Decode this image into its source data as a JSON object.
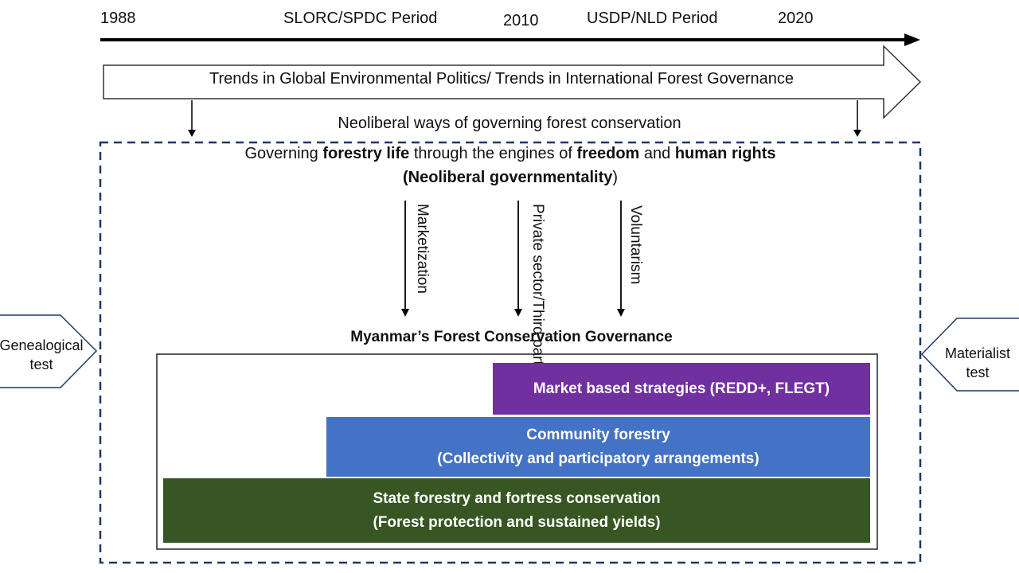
{
  "timeline": {
    "start_year": "1988",
    "period1": "SLORC/SPDC Period",
    "mid_year": "2010",
    "period2": "USDP/NLD Period",
    "end_year": "2020"
  },
  "trend_arrow": {
    "text": "Trends in Global Environmental Politics/ Trends in International Forest Governance"
  },
  "subtitle": "Neoliberal ways of governing forest conservation",
  "governing": {
    "line1_a": "Governing ",
    "line1_b": "forestry life",
    "line1_c": " through the engines of ",
    "line1_d": "freedom",
    "line1_e": " and ",
    "line1_f": "human rights",
    "line2_open": "(",
    "line2_bold": "Neoliberal governmentality",
    "line2_close": ")"
  },
  "mechanisms": {
    "marketization": "Marketization",
    "private_line1": "Private sector/",
    "private_line2": "Third parties",
    "voluntarism": "Voluntarism"
  },
  "governance_title": "Myanmar’s Forest Conservation Governance",
  "bands": {
    "market": {
      "line1": "Market based strategies (REDD+, FLEGT)",
      "color": "#7030a0"
    },
    "community": {
      "line1": "Community forestry",
      "line2": "(Collectivity and participatory arrangements)",
      "color": "#4472c4"
    },
    "state": {
      "line1": "State forestry and fortress conservation",
      "line2": "(Forest protection and sustained yields)",
      "color": "#375623"
    }
  },
  "side": {
    "left_line1": "Genealogical",
    "left_line2": "test",
    "right_line1": "Materialist",
    "right_line2": "test"
  },
  "colors": {
    "dashed_border": "#1f3864",
    "line": "#000000"
  }
}
